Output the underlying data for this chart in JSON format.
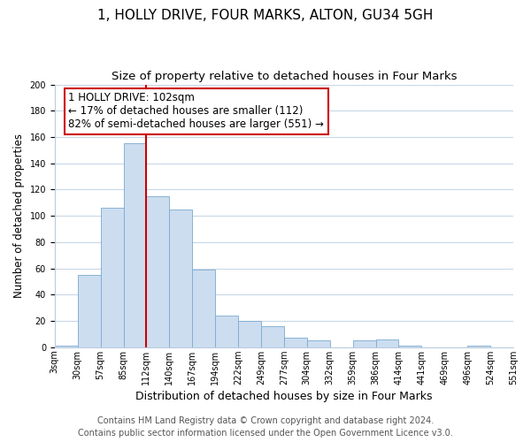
{
  "title": "1, HOLLY DRIVE, FOUR MARKS, ALTON, GU34 5GH",
  "subtitle": "Size of property relative to detached houses in Four Marks",
  "xlabel": "Distribution of detached houses by size in Four Marks",
  "ylabel": "Number of detached properties",
  "tick_labels": [
    "3sqm",
    "30sqm",
    "57sqm",
    "85sqm",
    "112sqm",
    "140sqm",
    "167sqm",
    "194sqm",
    "222sqm",
    "249sqm",
    "277sqm",
    "304sqm",
    "332sqm",
    "359sqm",
    "386sqm",
    "414sqm",
    "441sqm",
    "469sqm",
    "496sqm",
    "524sqm",
    "551sqm"
  ],
  "bar_values": [
    1,
    55,
    106,
    155,
    115,
    105,
    59,
    24,
    20,
    16,
    7,
    5,
    0,
    5,
    6,
    1,
    0,
    0,
    1,
    0
  ],
  "bar_color": "#ccddf0",
  "bar_edge_color": "#7aaacf",
  "vline_index": 4,
  "vline_color": "#cc0000",
  "ylim": [
    0,
    200
  ],
  "yticks": [
    0,
    20,
    40,
    60,
    80,
    100,
    120,
    140,
    160,
    180,
    200
  ],
  "annotation_title": "1 HOLLY DRIVE: 102sqm",
  "annotation_line1": "← 17% of detached houses are smaller (112)",
  "annotation_line2": "82% of semi-detached houses are larger (551) →",
  "annotation_box_color": "white",
  "annotation_box_edge": "#cc0000",
  "footer_line1": "Contains HM Land Registry data © Crown copyright and database right 2024.",
  "footer_line2": "Contains public sector information licensed under the Open Government Licence v3.0.",
  "title_fontsize": 11,
  "subtitle_fontsize": 9.5,
  "xlabel_fontsize": 9,
  "ylabel_fontsize": 8.5,
  "tick_fontsize": 7,
  "footer_fontsize": 7,
  "annotation_fontsize": 8.5,
  "grid_color": "#c8d8e8"
}
